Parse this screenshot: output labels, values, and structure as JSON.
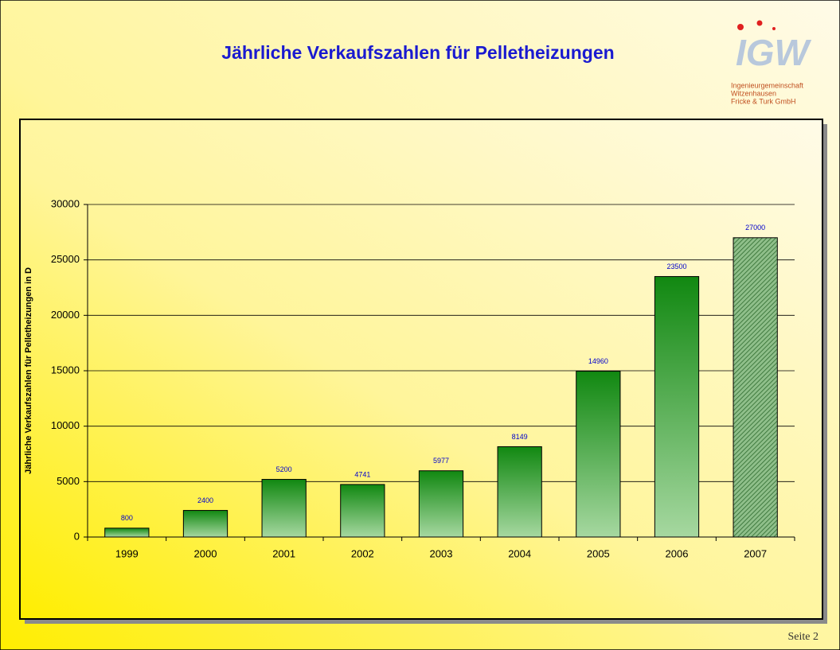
{
  "chart_data": {
    "type": "bar",
    "title": "Jährliche Verkaufszahlen für Pelletheizungen",
    "y_label": "Jährliche Verkaufszahlen für Pelletheizungen in D",
    "categories": [
      "1999",
      "2000",
      "2001",
      "2002",
      "2003",
      "2004",
      "2005",
      "2006",
      "2007"
    ],
    "values": [
      800,
      2400,
      5200,
      4741,
      5977,
      8149,
      14960,
      23500,
      27000
    ],
    "color": "#118811",
    "ylim": [
      0,
      30000
    ],
    "yticks": [
      0,
      5000,
      10000,
      15000,
      20000,
      25000,
      30000
    ],
    "grid": true
  },
  "logo": {
    "mark": "IGW",
    "lines": [
      "Ingenieurgemeinschaft",
      "Witzenhausen",
      "Fricke & Turk GmbH"
    ]
  },
  "footer": "Seite 2"
}
